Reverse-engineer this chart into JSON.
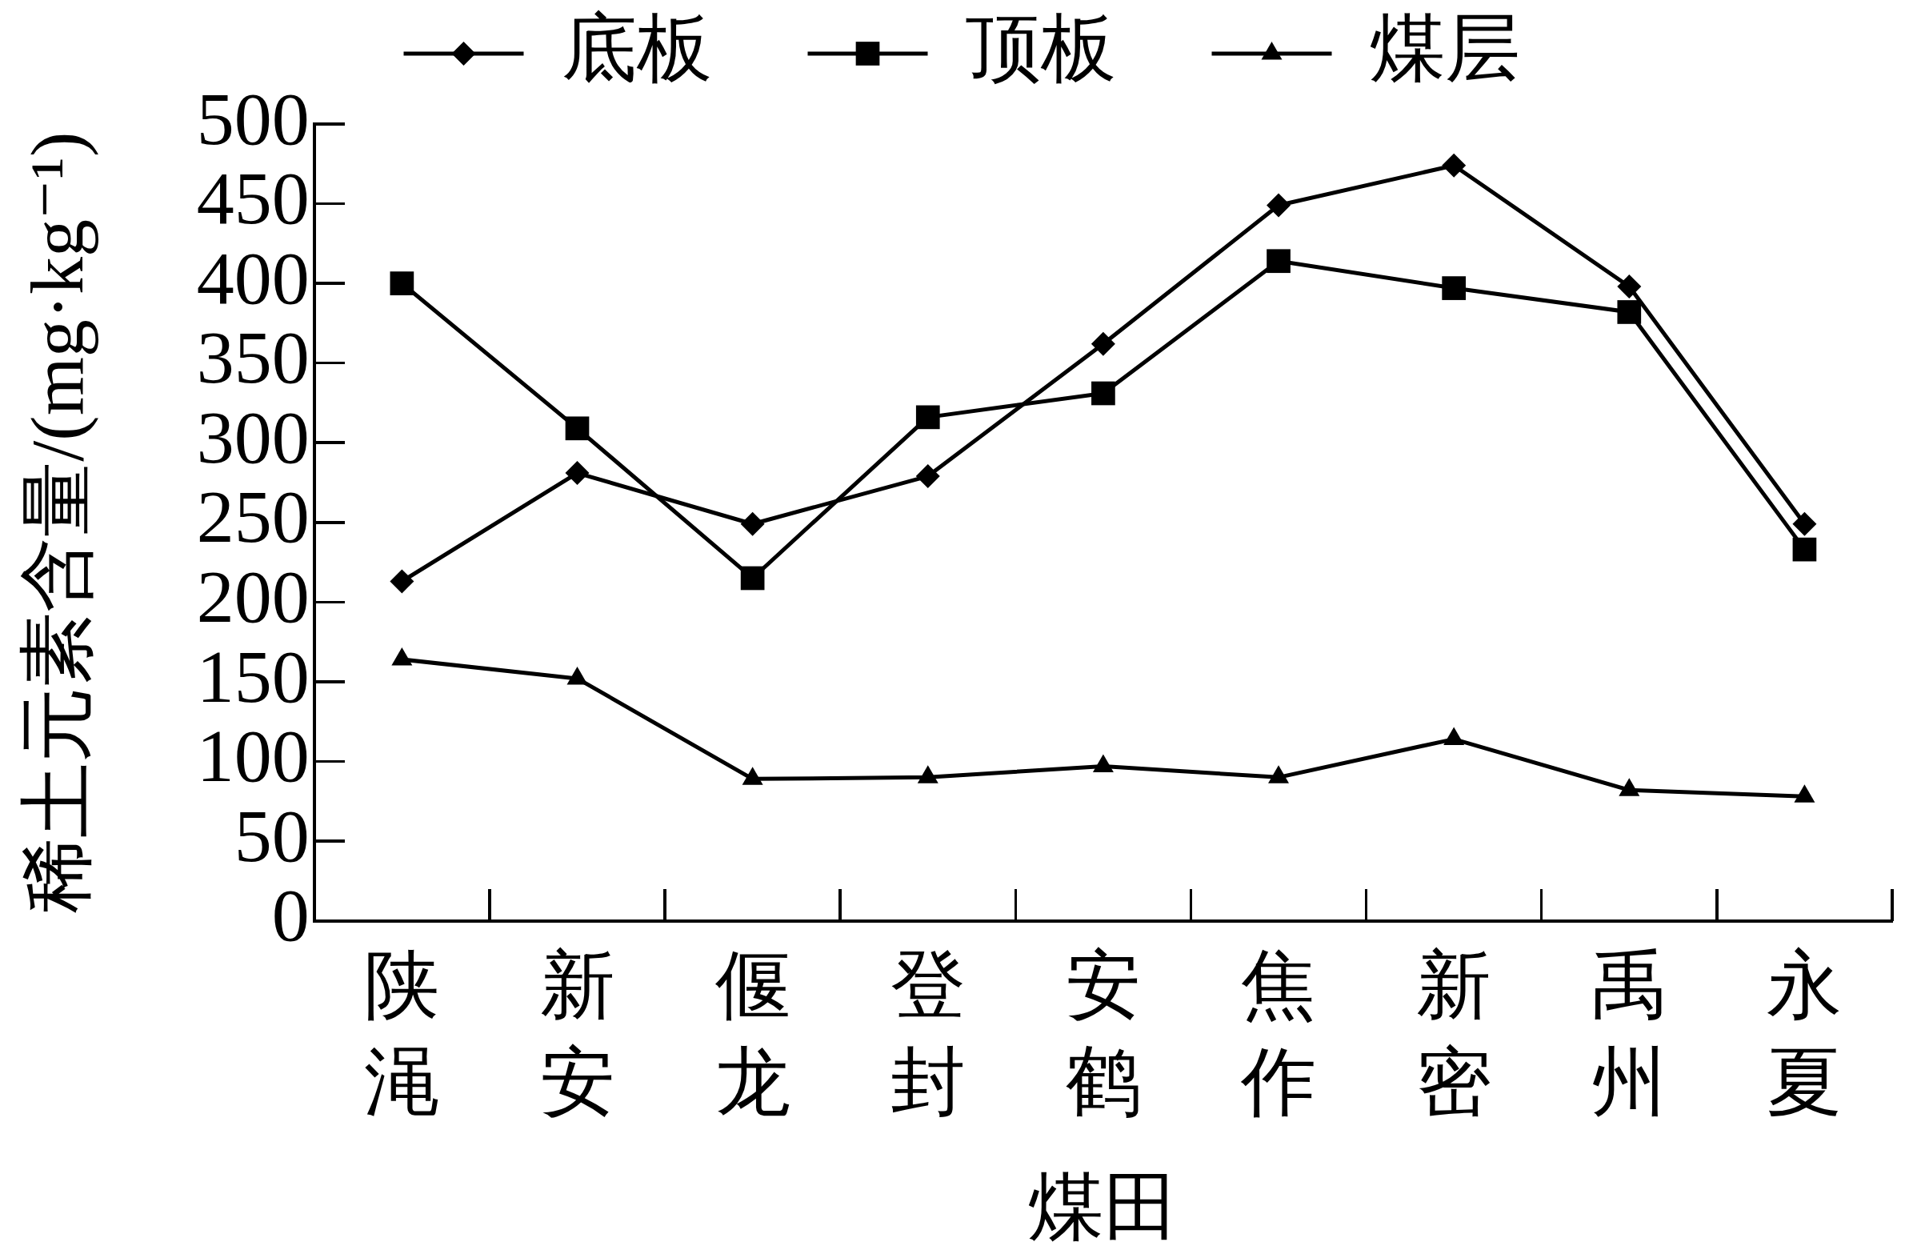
{
  "chart_data": {
    "type": "line",
    "xlabel": "煤田",
    "ylabel": "稀土元素含量/(mg·kg⁻¹)",
    "categories": [
      "陕渑",
      "新安",
      "偃龙",
      "登封",
      "安鹤",
      "焦作",
      "新密",
      "禹州",
      "永夏"
    ],
    "series": [
      {
        "name": "底板",
        "color": "#000000",
        "marker": "diamond",
        "values": [
          213,
          281,
          249,
          279,
          362,
          449,
          474,
          398,
          249
        ]
      },
      {
        "name": "顶板",
        "color": "#000000",
        "marker": "square",
        "values": [
          400,
          309,
          215,
          316,
          331,
          414,
          397,
          382,
          233
        ]
      },
      {
        "name": "煤层",
        "color": "#000000",
        "marker": "triangle",
        "values": [
          164,
          152,
          89,
          90,
          97,
          90,
          114,
          82,
          78
        ]
      }
    ],
    "ylim": [
      0,
      500
    ],
    "yticks": [
      0,
      50,
      100,
      150,
      200,
      250,
      300,
      350,
      400,
      450,
      500
    ],
    "legend": "top",
    "line_style": "solid"
  }
}
